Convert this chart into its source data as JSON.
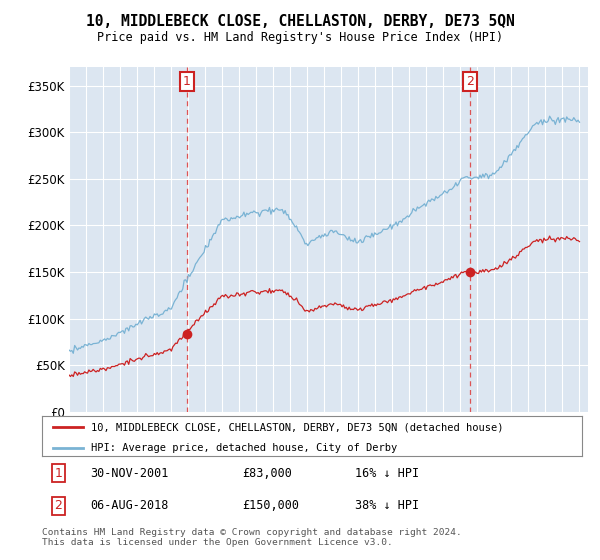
{
  "title": "10, MIDDLEBECK CLOSE, CHELLASTON, DERBY, DE73 5QN",
  "subtitle": "Price paid vs. HM Land Registry's House Price Index (HPI)",
  "bg_color": "#dce6f1",
  "sale1_yr": 2001.917,
  "sale1_price": 83000,
  "sale2_yr": 2018.583,
  "sale2_price": 150000,
  "hpi_color": "#7ab3d4",
  "price_color": "#cc2222",
  "vline_color": "#dd4444",
  "annotation_box_color": "#cc2222",
  "ylim": [
    0,
    370000
  ],
  "yticks": [
    0,
    50000,
    100000,
    150000,
    200000,
    250000,
    300000,
    350000
  ],
  "ylabel_fmt": [
    "£0",
    "£50K",
    "£100K",
    "£150K",
    "£200K",
    "£250K",
    "£300K",
    "£350K"
  ],
  "legend_line1": "10, MIDDLEBECK CLOSE, CHELLASTON, DERBY, DE73 5QN (detached house)",
  "legend_line2": "HPI: Average price, detached house, City of Derby",
  "note1_date": "30-NOV-2001",
  "note1_price": "£83,000",
  "note1_hpi": "16% ↓ HPI",
  "note2_date": "06-AUG-2018",
  "note2_price": "£150,000",
  "note2_hpi": "38% ↓ HPI",
  "footer": "Contains HM Land Registry data © Crown copyright and database right 2024.\nThis data is licensed under the Open Government Licence v3.0."
}
